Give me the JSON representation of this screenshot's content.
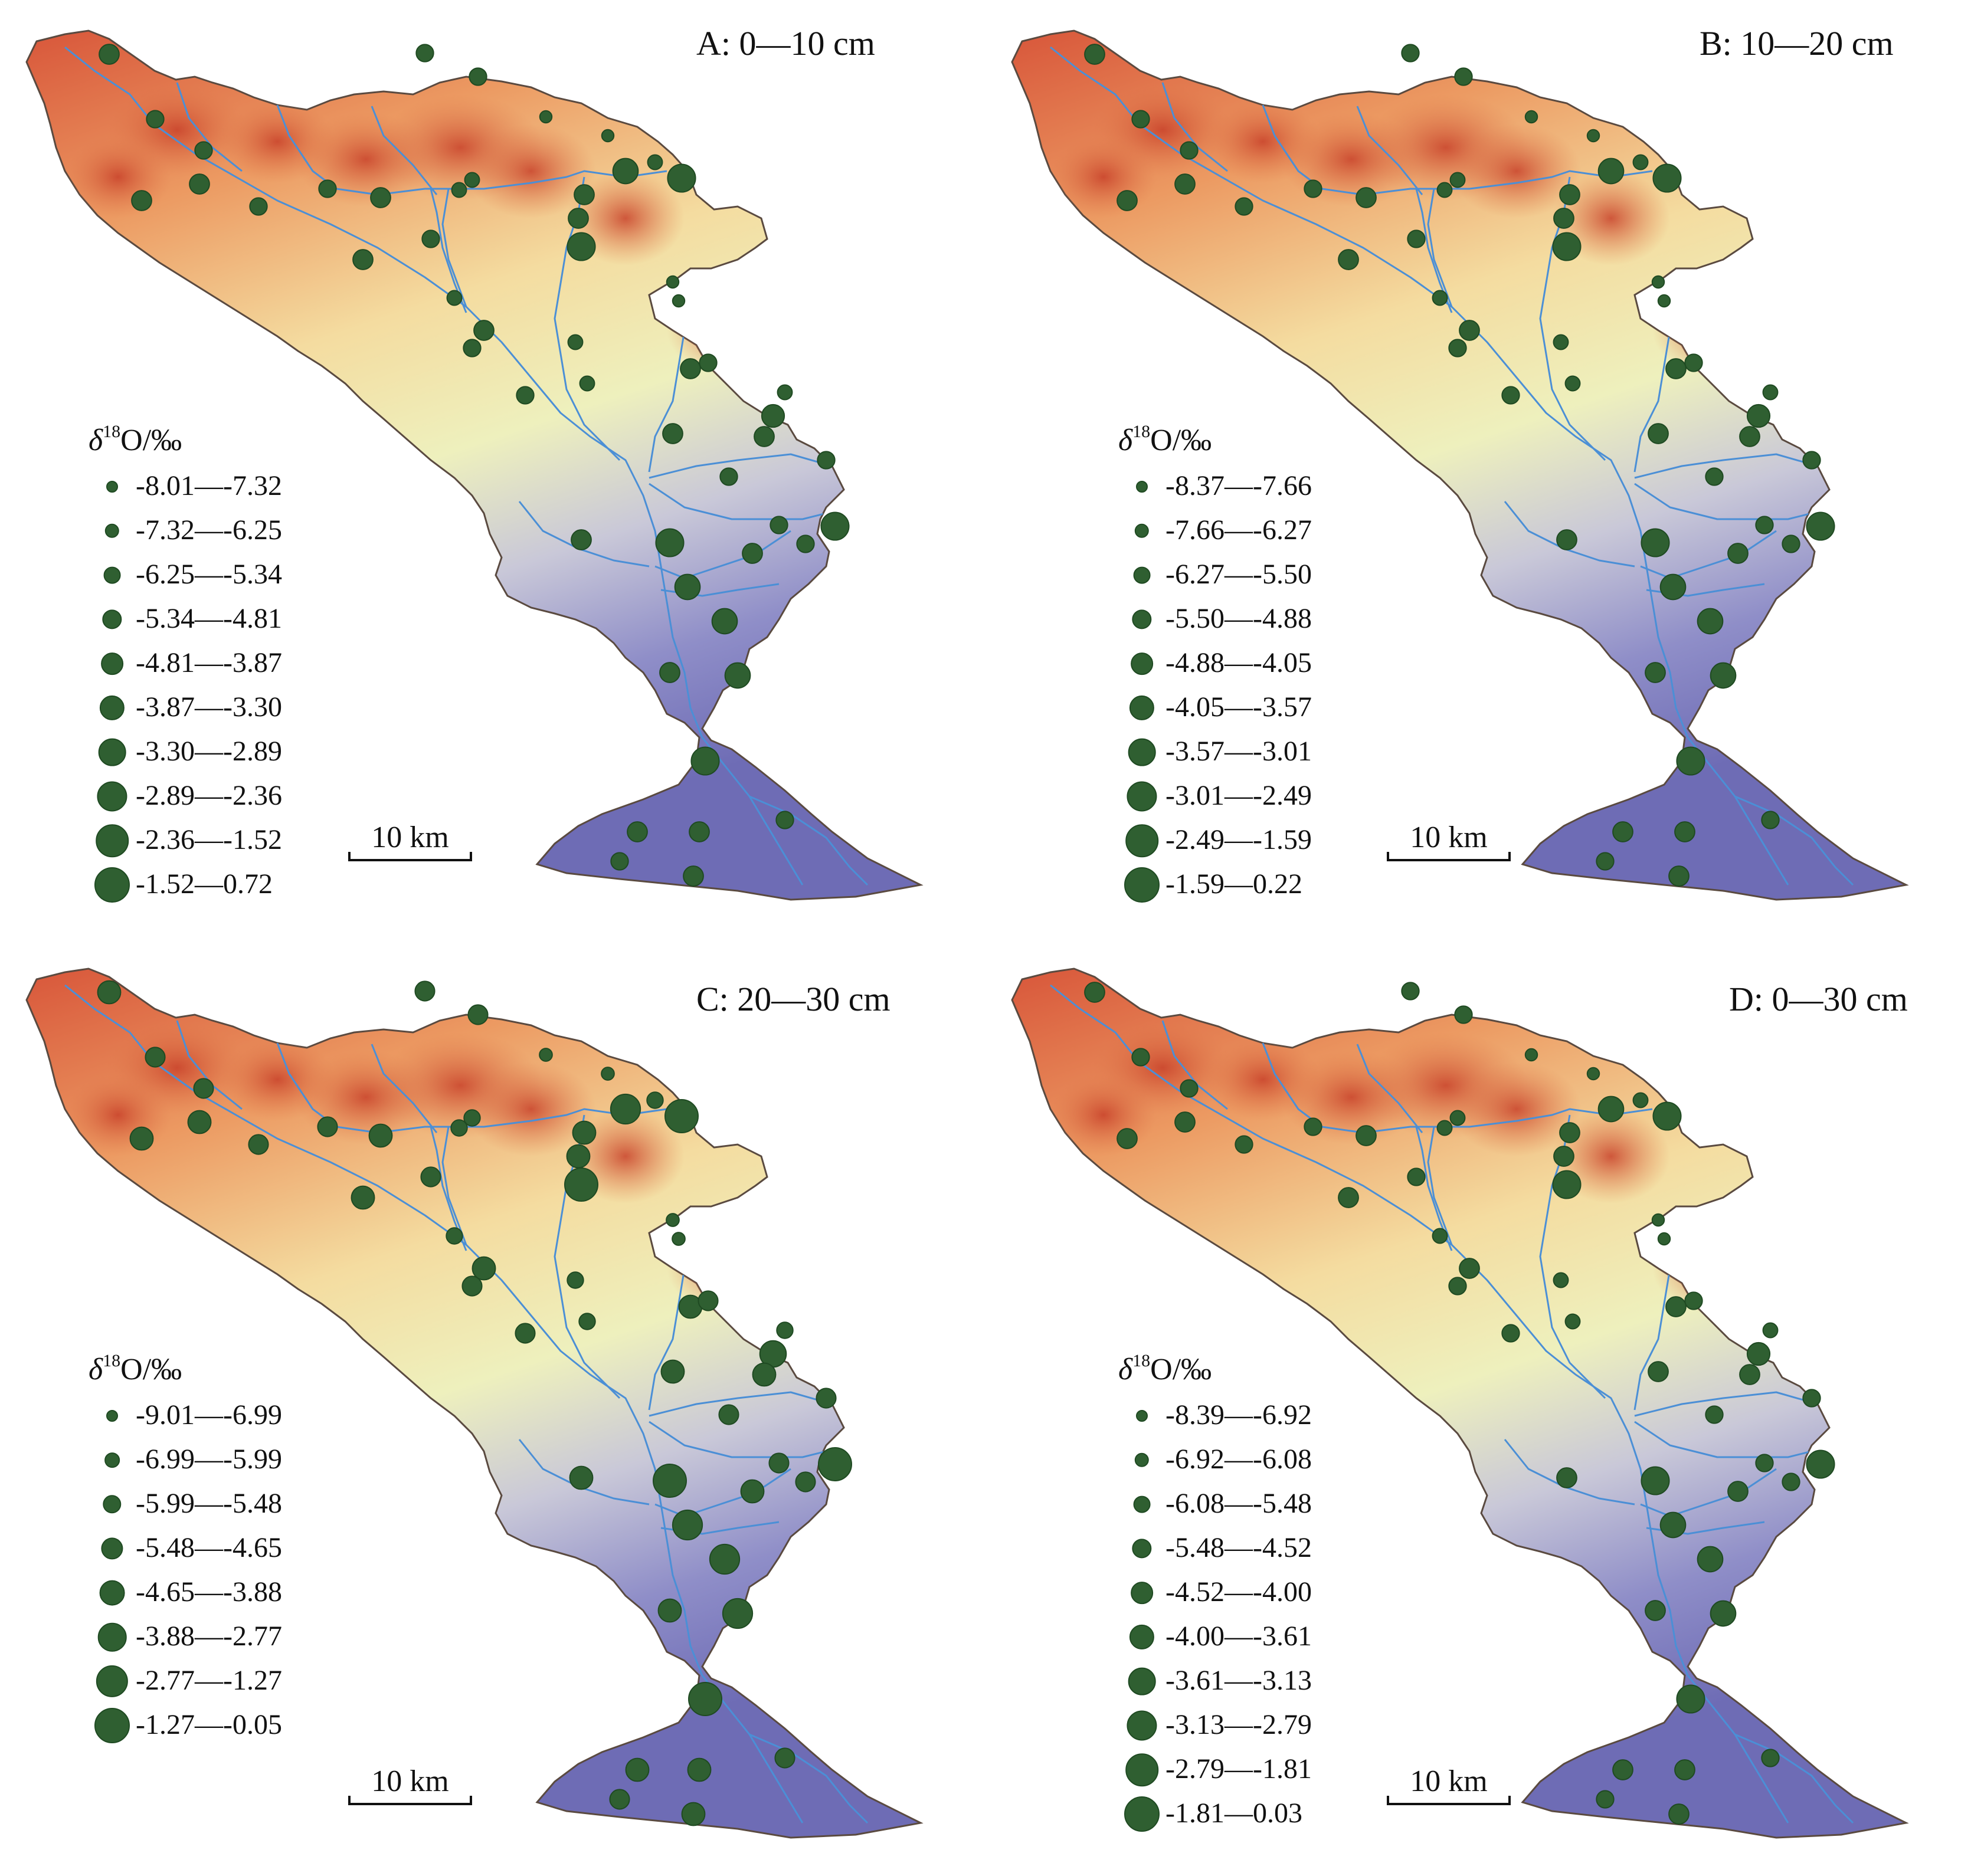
{
  "legend_title": "δ18O/‰",
  "legend_title_main": "δ",
  "legend_title_sup": "18",
  "legend_title_rest": "O/‰",
  "scale_label": "10 km",
  "colors": {
    "marker_fill": "#2f5f31",
    "marker_stroke": "#1f4a22",
    "river": "#4b8fd6",
    "terrain_high": "#d2492f",
    "terrain_mid": "#f2efb5",
    "terrain_low": "#6b6db8"
  },
  "panels": [
    {
      "title": "A: 0—10 cm",
      "legend": [
        "-8.01—-7.32",
        "-7.32—-6.25",
        "-6.25—-5.34",
        "-5.34—-4.81",
        "-4.81—-3.87",
        "-3.87—-3.30",
        "-3.30—-2.89",
        "-2.89—-2.36",
        "-2.36—-1.52",
        "-1.52—0.72"
      ]
    },
    {
      "title": "B: 10—20 cm",
      "legend": [
        "-8.37—-7.66",
        "-7.66—-6.27",
        "-6.27—-5.50",
        "-5.50—-4.88",
        "-4.88—-4.05",
        "-4.05—-3.57",
        "-3.57—-3.01",
        "-3.01—-2.49",
        "-2.49—-1.59",
        "-1.59—0.22"
      ]
    },
    {
      "title": "C: 20—30 cm",
      "legend": [
        "-9.01—-6.99",
        "-6.99—-5.99",
        "-5.99—-5.48",
        "-5.48—-4.65",
        "-4.65—-3.88",
        "-3.88—-2.77",
        "-2.77—-1.27",
        "-1.27—-0.05"
      ]
    },
    {
      "title": "D: 0—30 cm",
      "legend": [
        "-8.39—-6.92",
        "-6.92—-6.08",
        "-6.08—-5.48",
        "-5.48—-4.52",
        "-4.52—-4.00",
        "-4.00—-3.61",
        "-3.61—-3.13",
        "-3.13—-2.79",
        "-2.79—-1.81",
        "-1.81—0.03"
      ]
    }
  ]
}
